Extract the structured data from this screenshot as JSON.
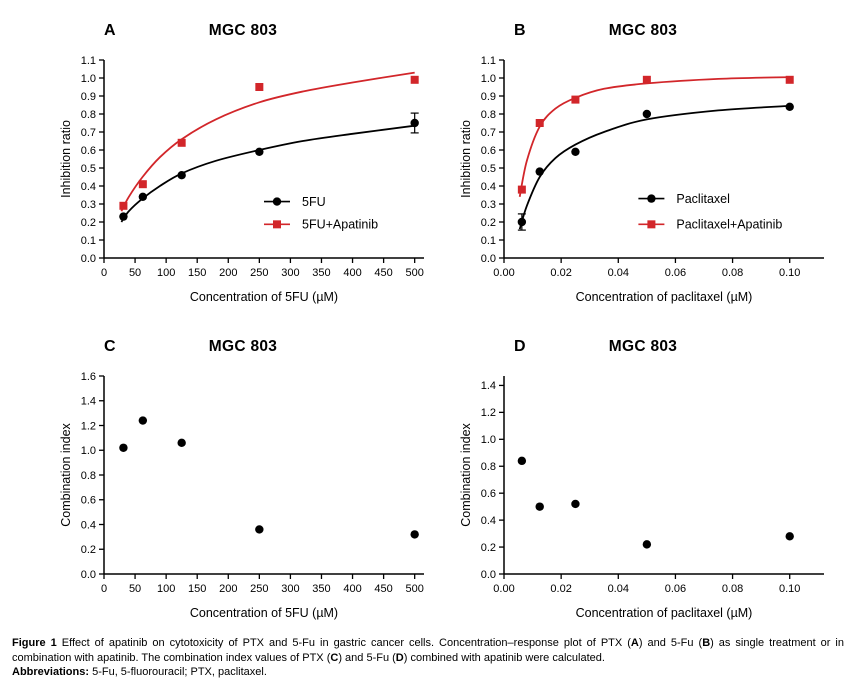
{
  "colors": {
    "series_black": "#000000",
    "series_red": "#d2262a",
    "axis": "#000000"
  },
  "caption": {
    "segments": [
      {
        "text": "Figure 1",
        "bold": true
      },
      {
        "text": " Effect of apatinib on cytotoxicity of PTX and 5-Fu in gastric cancer cells. Concentration–response plot of PTX (",
        "bold": false
      },
      {
        "text": "A",
        "bold": true
      },
      {
        "text": ") and 5-Fu (",
        "bold": false
      },
      {
        "text": "B",
        "bold": true
      },
      {
        "text": ") as single treatment or in combination with apatinib. The combination index values of PTX (",
        "bold": false
      },
      {
        "text": "C",
        "bold": true
      },
      {
        "text": ") and 5-Fu (",
        "bold": false
      },
      {
        "text": "D",
        "bold": true
      },
      {
        "text": ") combined with apatinib were calculated.",
        "bold": false
      }
    ],
    "abbreviations": [
      {
        "text": "Abbreviations:",
        "bold": true
      },
      {
        "text": " 5-Fu, 5-fluorouracil; PTX, paclitaxel.",
        "bold": false
      }
    ]
  },
  "chart_data": [
    {
      "panel": "A",
      "type": "scatter",
      "title": "MGC 803",
      "xlabel": "Concentration of 5FU (µM)",
      "ylabel": "Inhibition ratio",
      "xlim": [
        0,
        515
      ],
      "ylim": [
        0,
        1.1
      ],
      "grid": false,
      "xticks": [
        0,
        50,
        100,
        150,
        200,
        250,
        300,
        350,
        400,
        450,
        500
      ],
      "xtick_labels": [
        "0",
        "50",
        "100",
        "150",
        "200",
        "250",
        "300",
        "350",
        "400",
        "450",
        "500"
      ],
      "yticks": [
        0,
        0.1,
        0.2,
        0.3,
        0.4,
        0.5,
        0.6,
        0.7,
        0.8,
        0.9,
        1.0,
        1.1
      ],
      "ytick_labels": [
        "0.0",
        "0.1",
        "0.2",
        "0.3",
        "0.4",
        "0.5",
        "0.6",
        "0.7",
        "0.8",
        "0.9",
        "1.0",
        "1.1"
      ],
      "series": [
        {
          "name": "5FU",
          "color": "series_black",
          "marker": "circle",
          "x": [
            31.25,
            62.5,
            125,
            250,
            500
          ],
          "y": [
            0.23,
            0.34,
            0.46,
            0.59,
            0.75
          ],
          "yerr": [
            0,
            0,
            0,
            0,
            0.055
          ],
          "curve": [
            [
              28,
              0.2
            ],
            [
              40,
              0.26
            ],
            [
              62,
              0.33
            ],
            [
              90,
              0.4
            ],
            [
              125,
              0.47
            ],
            [
              180,
              0.54
            ],
            [
              250,
              0.6
            ],
            [
              320,
              0.65
            ],
            [
              400,
              0.69
            ],
            [
              500,
              0.735
            ]
          ]
        },
        {
          "name": "5FU+Apatinib",
          "color": "series_red",
          "marker": "square",
          "x": [
            31.25,
            62.5,
            125,
            250,
            500
          ],
          "y": [
            0.29,
            0.41,
            0.64,
            0.95,
            0.99
          ],
          "yerr": [
            0,
            0,
            0,
            0,
            0
          ],
          "curve": [
            [
              28,
              0.26
            ],
            [
              40,
              0.34
            ],
            [
              62,
              0.45
            ],
            [
              90,
              0.56
            ],
            [
              125,
              0.66
            ],
            [
              180,
              0.77
            ],
            [
              250,
              0.865
            ],
            [
              320,
              0.925
            ],
            [
              400,
              0.975
            ],
            [
              500,
              1.03
            ]
          ]
        }
      ],
      "legend": {
        "position": "inside-right",
        "x_frac": 0.5,
        "rows": [
          0.715,
          0.83
        ]
      }
    },
    {
      "panel": "B",
      "type": "scatter",
      "title": "MGC 803",
      "xlabel": "Concentration of paclitaxel (µM)",
      "ylabel": "Inhibition ratio",
      "xlim": [
        0,
        0.112
      ],
      "ylim": [
        0,
        1.1
      ],
      "grid": false,
      "xticks": [
        0,
        0.02,
        0.04,
        0.06,
        0.08,
        0.1
      ],
      "xtick_labels": [
        "0.00",
        "0.02",
        "0.04",
        "0.06",
        "0.08",
        "0.10"
      ],
      "yticks": [
        0,
        0.1,
        0.2,
        0.3,
        0.4,
        0.5,
        0.6,
        0.7,
        0.8,
        0.9,
        1.0,
        1.1
      ],
      "ytick_labels": [
        "0.0",
        "0.1",
        "0.2",
        "0.3",
        "0.4",
        "0.5",
        "0.6",
        "0.7",
        "0.8",
        "0.9",
        "1.0",
        "1.1"
      ],
      "series": [
        {
          "name": "Paclitaxel",
          "color": "series_black",
          "marker": "circle",
          "x": [
            0.00625,
            0.0125,
            0.025,
            0.05,
            0.1
          ],
          "y": [
            0.2,
            0.48,
            0.59,
            0.8,
            0.84
          ],
          "yerr": [
            0.045,
            0,
            0,
            0,
            0
          ],
          "curve": [
            [
              0.0055,
              0.16
            ],
            [
              0.008,
              0.29
            ],
            [
              0.0125,
              0.45
            ],
            [
              0.018,
              0.555
            ],
            [
              0.025,
              0.63
            ],
            [
              0.035,
              0.7
            ],
            [
              0.05,
              0.77
            ],
            [
              0.075,
              0.82
            ],
            [
              0.1,
              0.845
            ]
          ]
        },
        {
          "name": "Paclitaxel+Apatinib",
          "color": "series_red",
          "marker": "square",
          "x": [
            0.00625,
            0.0125,
            0.025,
            0.05,
            0.1
          ],
          "y": [
            0.38,
            0.75,
            0.88,
            0.99,
            0.99
          ],
          "yerr": [
            0,
            0,
            0,
            0,
            0
          ],
          "curve": [
            [
              0.0055,
              0.34
            ],
            [
              0.008,
              0.54
            ],
            [
              0.0125,
              0.73
            ],
            [
              0.018,
              0.83
            ],
            [
              0.025,
              0.89
            ],
            [
              0.035,
              0.94
            ],
            [
              0.05,
              0.97
            ],
            [
              0.075,
              0.995
            ],
            [
              0.1,
              1.005
            ]
          ]
        }
      ],
      "legend": {
        "position": "inside-right",
        "x_frac": 0.42,
        "rows": [
          0.7,
          0.83
        ]
      }
    },
    {
      "panel": "C",
      "type": "scatter",
      "title": "MGC 803",
      "xlabel": "Concentration of 5FU (µM)",
      "ylabel": "Combination index",
      "xlim": [
        0,
        515
      ],
      "ylim": [
        0,
        1.6
      ],
      "grid": false,
      "xticks": [
        0,
        50,
        100,
        150,
        200,
        250,
        300,
        350,
        400,
        450,
        500
      ],
      "xtick_labels": [
        "0",
        "50",
        "100",
        "150",
        "200",
        "250",
        "300",
        "350",
        "400",
        "450",
        "500"
      ],
      "yticks": [
        0,
        0.2,
        0.4,
        0.6,
        0.8,
        1.0,
        1.2,
        1.4,
        1.6
      ],
      "ytick_labels": [
        "0.0",
        "0.2",
        "0.4",
        "0.6",
        "0.8",
        "1.0",
        "1.2",
        "1.4",
        "1.6"
      ],
      "series": [
        {
          "name": "Combination index",
          "color": "series_black",
          "marker": "circle",
          "x": [
            31.25,
            62.5,
            125,
            250,
            500
          ],
          "y": [
            1.02,
            1.24,
            1.06,
            0.36,
            0.32
          ],
          "yerr": [
            0,
            0,
            0,
            0,
            0
          ]
        }
      ]
    },
    {
      "panel": "D",
      "type": "scatter",
      "title": "MGC 803",
      "xlabel": "Concentration of paclitaxel (µM)",
      "ylabel": "Combination index",
      "xlim": [
        0,
        0.112
      ],
      "ylim": [
        0,
        1.47
      ],
      "grid": false,
      "xticks": [
        0,
        0.02,
        0.04,
        0.06,
        0.08,
        0.1
      ],
      "xtick_labels": [
        "0.00",
        "0.02",
        "0.04",
        "0.06",
        "0.08",
        "0.10"
      ],
      "yticks": [
        0,
        0.2,
        0.4,
        0.6,
        0.8,
        1.0,
        1.2,
        1.4
      ],
      "ytick_labels": [
        "0.0",
        "0.2",
        "0.4",
        "0.6",
        "0.8",
        "1.0",
        "1.2",
        "1.4"
      ],
      "series": [
        {
          "name": "Combination index",
          "color": "series_black",
          "marker": "circle",
          "x": [
            0.00625,
            0.0125,
            0.025,
            0.05,
            0.1
          ],
          "y": [
            0.84,
            0.5,
            0.52,
            0.22,
            0.28
          ],
          "yerr": [
            0,
            0,
            0,
            0,
            0
          ]
        }
      ]
    }
  ]
}
